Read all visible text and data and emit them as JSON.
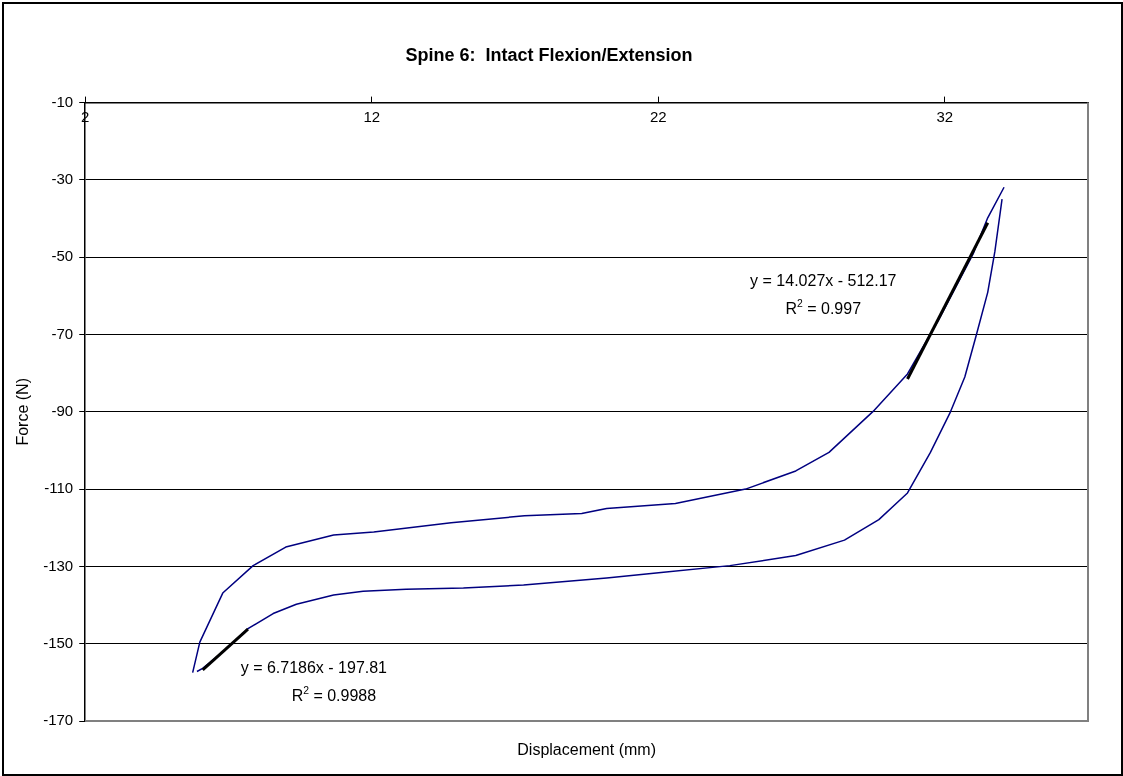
{
  "chart_data": {
    "type": "line",
    "title": "Spine 6:  Intact Flexion/Extension",
    "xlabel": "Displacement (mm)",
    "ylabel": "Force (N)",
    "xlim": [
      2,
      37
    ],
    "xticks": [
      2,
      12,
      22,
      32
    ],
    "ylim": [
      -170,
      -10
    ],
    "yticks": [
      -10,
      -30,
      -50,
      -70,
      -90,
      -110,
      -130,
      -150,
      -170
    ],
    "grid": "y",
    "marker": "none",
    "line_style": "solid",
    "series": [
      {
        "color": "#000080",
        "x": [
          5.75,
          6.0,
          6.8,
          7.86,
          9.0,
          10.67,
          12.07,
          14.77,
          17.33,
          19.33,
          20.2,
          22.6,
          25.05,
          26.8,
          27.96,
          29.5,
          30.7,
          31.8,
          33.0,
          33.5,
          34.07
        ],
        "values": [
          -157.5,
          -149.6,
          -136.9,
          -129.8,
          -125,
          -121.9,
          -121.1,
          -118.7,
          -116.9,
          -116.3,
          -115,
          -113.7,
          -110,
          -105.3,
          -100.5,
          -89.9,
          -80.2,
          -66,
          -49,
          -39.8,
          -31.9
        ]
      },
      {
        "color": "#000080",
        "x": [
          34.0,
          33.75,
          33.5,
          33.1,
          32.7,
          32.2,
          31.5,
          30.7,
          29.7,
          28.5,
          26.8,
          24.5,
          22.1,
          20.2,
          17.3,
          15.2,
          13.2,
          11.7,
          10.67,
          9.37,
          8.56,
          7.68,
          6.9,
          6.1,
          5.9
        ],
        "values": [
          -35,
          -48.5,
          -59.1,
          -70.2,
          -81,
          -90,
          -100.5,
          -111,
          -117.9,
          -123.2,
          -127.2,
          -129.8,
          -131.6,
          -133,
          -134.8,
          -135.6,
          -135.9,
          -136.4,
          -137.4,
          -139.8,
          -142.2,
          -146.1,
          -151.5,
          -156.4,
          -157.2
        ]
      },
      {
        "type": "line",
        "color": "#000000",
        "x": [
          30.7,
          33.5
        ],
        "values": [
          -81.5,
          -41.1
        ]
      },
      {
        "type": "line",
        "color": "#000000",
        "x": [
          6.1,
          7.68
        ],
        "values": [
          -156.8,
          -146.2
        ]
      }
    ],
    "annotations": [
      "y = 14.027x - 512.17",
      "R$^{2}$ = 0.997",
      "y = 6.7186x - 197.81",
      "R$^{2}$ = 0.9988"
    ]
  }
}
